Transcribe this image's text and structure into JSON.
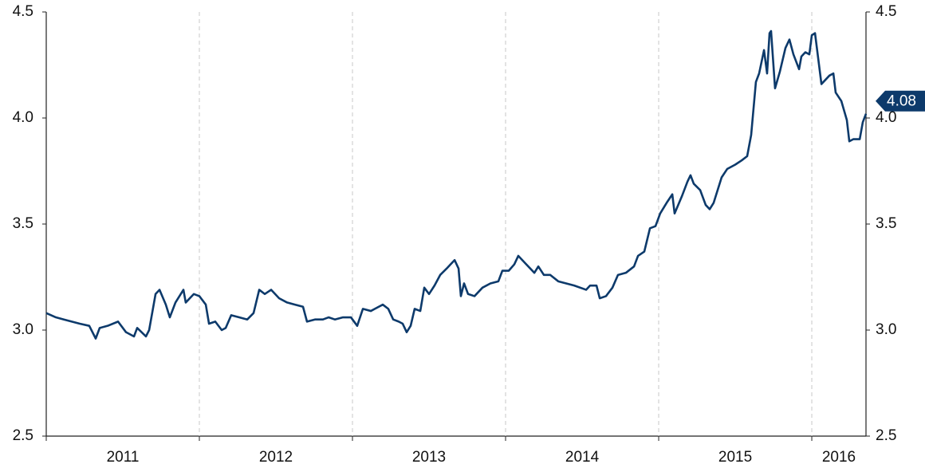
{
  "chart_data": {
    "type": "line",
    "x": [
      2011.0,
      2011.063,
      2011.115,
      2011.167,
      2011.219,
      2011.281,
      2011.323,
      2011.349,
      2011.401,
      2011.469,
      2011.521,
      2011.573,
      2011.594,
      2011.651,
      2011.672,
      2011.714,
      2011.74,
      2011.781,
      2011.807,
      2011.844,
      2011.896,
      2011.911,
      2011.964,
      2012.0,
      2012.042,
      2012.063,
      2012.104,
      2012.146,
      2012.172,
      2012.208,
      2012.26,
      2012.313,
      2012.354,
      2012.391,
      2012.427,
      2012.469,
      2012.521,
      2012.573,
      2012.625,
      2012.677,
      2012.703,
      2012.755,
      2012.807,
      2012.844,
      2012.885,
      2012.938,
      2012.99,
      2013.031,
      2013.068,
      2013.12,
      2013.146,
      2013.198,
      2013.234,
      2013.266,
      2013.302,
      2013.328,
      2013.354,
      2013.38,
      2013.406,
      2013.443,
      2013.469,
      2013.5,
      2013.536,
      2013.573,
      2013.615,
      2013.641,
      2013.667,
      2013.693,
      2013.708,
      2013.729,
      2013.755,
      2013.797,
      2013.849,
      2013.901,
      2013.953,
      2013.979,
      2014.021,
      2014.057,
      2014.083,
      2014.135,
      2014.188,
      2014.214,
      2014.25,
      2014.292,
      2014.344,
      2014.396,
      2014.448,
      2014.526,
      2014.552,
      2014.594,
      2014.615,
      2014.656,
      2014.698,
      2014.734,
      2014.786,
      2014.839,
      2014.865,
      2014.906,
      2014.943,
      2014.979,
      2015.01,
      2015.052,
      2015.089,
      2015.104,
      2015.151,
      2015.188,
      2015.208,
      2015.229,
      2015.271,
      2015.307,
      2015.333,
      2015.359,
      2015.411,
      2015.448,
      2015.5,
      2015.542,
      2015.578,
      2015.604,
      2015.635,
      2015.656,
      2015.688,
      2015.708,
      2015.724,
      2015.734,
      2015.76,
      2015.792,
      2015.828,
      2015.854,
      2015.88,
      2015.917,
      2015.932,
      2015.958,
      2015.984,
      2016.0,
      2016.021,
      2016.063,
      2016.115,
      2016.141,
      2016.156,
      2016.193,
      2016.229,
      2016.245,
      2016.271,
      2016.313,
      2016.333,
      2016.354
    ],
    "values": [
      3.08,
      3.06,
      3.05,
      3.04,
      3.03,
      3.02,
      2.96,
      3.01,
      3.02,
      3.04,
      2.99,
      2.97,
      3.01,
      2.97,
      3.0,
      3.17,
      3.19,
      3.12,
      3.06,
      3.13,
      3.19,
      3.13,
      3.17,
      3.16,
      3.12,
      3.03,
      3.04,
      3.0,
      3.01,
      3.07,
      3.06,
      3.05,
      3.08,
      3.19,
      3.17,
      3.19,
      3.15,
      3.13,
      3.12,
      3.11,
      3.04,
      3.05,
      3.05,
      3.06,
      3.05,
      3.06,
      3.06,
      3.02,
      3.1,
      3.09,
      3.1,
      3.12,
      3.1,
      3.05,
      3.04,
      3.03,
      2.99,
      3.02,
      3.1,
      3.09,
      3.2,
      3.17,
      3.21,
      3.26,
      3.29,
      3.31,
      3.33,
      3.29,
      3.16,
      3.22,
      3.17,
      3.16,
      3.2,
      3.22,
      3.23,
      3.28,
      3.28,
      3.31,
      3.35,
      3.31,
      3.27,
      3.3,
      3.26,
      3.26,
      3.23,
      3.22,
      3.21,
      3.19,
      3.21,
      3.21,
      3.15,
      3.16,
      3.2,
      3.26,
      3.27,
      3.3,
      3.35,
      3.37,
      3.48,
      3.49,
      3.55,
      3.6,
      3.64,
      3.55,
      3.63,
      3.7,
      3.73,
      3.69,
      3.66,
      3.59,
      3.57,
      3.6,
      3.72,
      3.76,
      3.78,
      3.8,
      3.82,
      3.92,
      4.17,
      4.21,
      4.32,
      4.21,
      4.4,
      4.41,
      4.14,
      4.22,
      4.33,
      4.37,
      4.3,
      4.23,
      4.29,
      4.31,
      4.3,
      4.39,
      4.4,
      4.16,
      4.2,
      4.21,
      4.12,
      4.08,
      3.99,
      3.89,
      3.9,
      3.9,
      3.98,
      4.02
    ],
    "color": "#0d3a6b",
    "xlim": [
      2011,
      2016.354
    ],
    "xticks": [
      {
        "value": 2011,
        "label": "2011"
      },
      {
        "value": 2012,
        "label": "2012"
      },
      {
        "value": 2013,
        "label": "2013"
      },
      {
        "value": 2014,
        "label": "2014"
      },
      {
        "value": 2015,
        "label": "2015"
      },
      {
        "value": 2016,
        "label": "2016"
      }
    ],
    "x_grid": true,
    "ylim": [
      2.5,
      4.5
    ],
    "yticks": [
      2.5,
      {
        "value": 3,
        "label": "3.0"
      },
      3.5,
      {
        "value": 4,
        "label": "4.0"
      },
      4.5
    ],
    "y2lim": [
      2.5,
      4.5
    ],
    "y2ticks": [
      2.5,
      {
        "value": 3,
        "label": "3.0"
      },
      3.5,
      {
        "value": 4,
        "label": "4.0"
      },
      4.5
    ],
    "callout": 4.08
  }
}
